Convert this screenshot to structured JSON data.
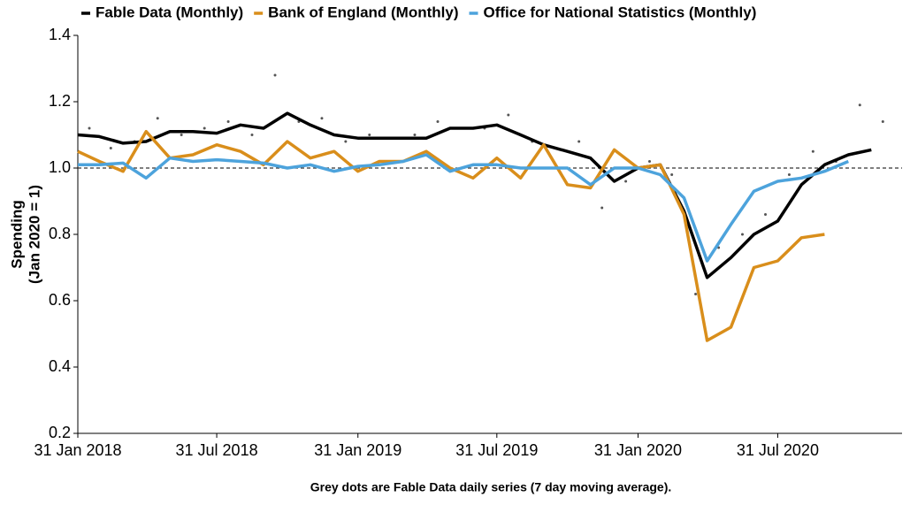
{
  "chart_data": {
    "type": "line",
    "ylabel": [
      "Spending",
      "(Jan 2020 = 1)"
    ],
    "annotation": "Grey dots are Fable Data daily series (7 day moving average).",
    "x": [
      "2018-01-31",
      "2018-02-28",
      "2018-03-31",
      "2018-04-30",
      "2018-05-31",
      "2018-06-30",
      "2018-07-31",
      "2018-08-31",
      "2018-09-30",
      "2018-10-31",
      "2018-11-30",
      "2018-12-31",
      "2019-01-31",
      "2019-02-28",
      "2019-03-31",
      "2019-04-30",
      "2019-05-31",
      "2019-06-30",
      "2019-07-31",
      "2019-08-31",
      "2019-09-30",
      "2019-10-31",
      "2019-11-30",
      "2019-12-31",
      "2020-01-31",
      "2020-02-29",
      "2020-03-31",
      "2020-04-30",
      "2020-05-31",
      "2020-06-30",
      "2020-07-31",
      "2020-08-31",
      "2020-09-30",
      "2020-10-31",
      "2020-11-30"
    ],
    "series": [
      {
        "name": "Fable Data (Monthly)",
        "color": "#000000",
        "values": [
          1.1,
          1.095,
          1.075,
          1.08,
          1.11,
          1.11,
          1.105,
          1.13,
          1.12,
          1.165,
          1.13,
          1.1,
          1.09,
          1.09,
          1.09,
          1.09,
          1.12,
          1.12,
          1.13,
          1.1,
          1.07,
          1.05,
          1.03,
          0.96,
          1.0,
          1.01,
          0.87,
          0.67,
          0.73,
          0.8,
          0.84,
          0.95,
          1.01,
          1.04,
          1.055
        ]
      },
      {
        "name": "Bank of England (Monthly)",
        "color": "#d98e1b",
        "values": [
          1.05,
          1.02,
          0.99,
          1.11,
          1.03,
          1.04,
          1.07,
          1.05,
          1.01,
          1.08,
          1.03,
          1.05,
          0.99,
          1.02,
          1.02,
          1.05,
          1.0,
          0.97,
          1.03,
          0.97,
          1.07,
          0.95,
          0.94,
          1.055,
          1.0,
          1.01,
          0.86,
          0.48,
          0.52,
          0.7,
          0.72,
          0.79,
          0.8,
          null,
          null
        ]
      },
      {
        "name": "Office for National Statistics (Monthly)",
        "color": "#4da3dc",
        "values": [
          1.01,
          1.01,
          1.015,
          0.97,
          1.03,
          1.02,
          1.025,
          1.02,
          1.015,
          1.0,
          1.01,
          0.99,
          1.005,
          1.01,
          1.02,
          1.04,
          0.99,
          1.01,
          1.01,
          1.0,
          1.0,
          1.0,
          0.95,
          1.0,
          1.0,
          0.98,
          0.91,
          0.72,
          0.83,
          0.93,
          0.96,
          0.97,
          0.99,
          1.02,
          null
        ]
      }
    ],
    "dots": {
      "color": "#555555",
      "x": [
        "2018-02-15",
        "2018-03-15",
        "2018-04-15",
        "2018-05-15",
        "2018-06-15",
        "2018-07-15",
        "2018-08-15",
        "2018-09-15",
        "2018-10-15",
        "2018-11-15",
        "2018-12-15",
        "2019-01-15",
        "2019-02-15",
        "2019-03-15",
        "2019-04-15",
        "2019-05-15",
        "2019-06-15",
        "2019-07-15",
        "2019-08-15",
        "2019-09-15",
        "2019-10-15",
        "2019-11-15",
        "2019-12-15",
        "2020-01-15",
        "2020-02-15",
        "2020-03-15",
        "2020-04-15",
        "2020-05-15",
        "2020-06-15",
        "2020-07-15",
        "2020-08-15",
        "2020-09-15",
        "2020-10-15",
        "2020-11-15",
        "2020-12-15"
      ],
      "values": [
        1.12,
        1.06,
        1.08,
        1.15,
        1.1,
        1.12,
        1.14,
        1.1,
        1.28,
        1.14,
        1.15,
        1.08,
        1.1,
        1.09,
        1.1,
        1.14,
        1.12,
        1.12,
        1.16,
        1.08,
        1.06,
        1.08,
        0.88,
        0.96,
        1.02,
        0.98,
        0.62,
        0.76,
        0.8,
        0.86,
        0.98,
        1.05,
        1.02,
        1.19,
        1.14
      ]
    },
    "reference_line": 1,
    "xlim": [
      "2018-01-31",
      "2021-01-09"
    ],
    "xticks": [
      {
        "value": "2018-01-31",
        "label": "31 Jan 2018"
      },
      {
        "value": "2018-07-31",
        "label": "31 Jul 2018"
      },
      {
        "value": "2019-01-31",
        "label": "31 Jan 2019"
      },
      {
        "value": "2019-07-31",
        "label": "31 Jul 2019"
      },
      {
        "value": "2020-01-31",
        "label": "31 Jan 2020"
      },
      {
        "value": "2020-07-31",
        "label": "31 Jul 2020"
      }
    ],
    "ylim": [
      0.2,
      1.4
    ],
    "yticks": [
      {
        "value": 0.2,
        "label": "0.2"
      },
      {
        "value": 0.4,
        "label": "0.4"
      },
      {
        "value": 0.6,
        "label": "0.6"
      },
      {
        "value": 0.8,
        "label": "0.8"
      },
      {
        "value": 1.0,
        "label": "1.0"
      },
      {
        "value": 1.2,
        "label": "1.2"
      },
      {
        "value": 1.4,
        "label": "1.4"
      }
    ]
  }
}
